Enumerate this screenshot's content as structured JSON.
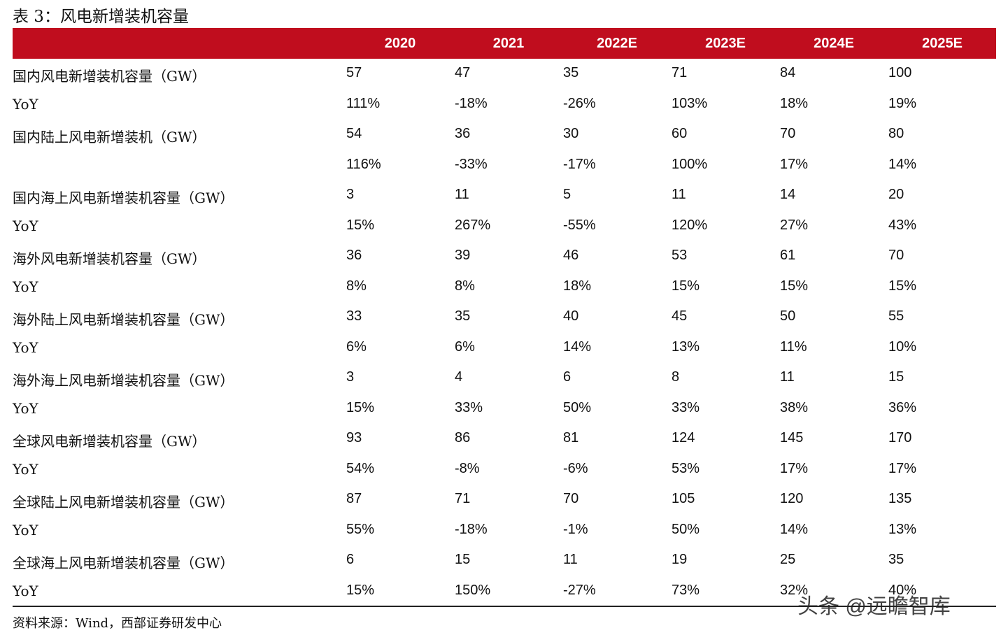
{
  "title": "表 3：风电新增装机容量",
  "table": {
    "header": [
      "2020",
      "2021",
      "2022E",
      "2023E",
      "2024E",
      "2025E"
    ],
    "rows": [
      [
        "国内风电新增装机容量（GW）",
        "57",
        "47",
        "35",
        "71",
        "84",
        "100"
      ],
      [
        "YoY",
        "111%",
        "-18%",
        "-26%",
        "103%",
        "18%",
        "19%"
      ],
      [
        "国内陆上风电新增装机（GW）",
        "54",
        "36",
        "30",
        "60",
        "70",
        "80"
      ],
      [
        null,
        "116%",
        "-33%",
        "-17%",
        "100%",
        "17%",
        "14%"
      ],
      [
        "国内海上风电新增装机容量（GW）",
        "3",
        "11",
        "5",
        "11",
        "14",
        "20"
      ],
      [
        "YoY",
        "15%",
        "267%",
        "-55%",
        "120%",
        "27%",
        "43%"
      ],
      [
        "海外风电新增装机容量（GW）",
        "36",
        "39",
        "46",
        "53",
        "61",
        "70"
      ],
      [
        "YoY",
        "8%",
        "8%",
        "18%",
        "15%",
        "15%",
        "15%"
      ],
      [
        "海外陆上风电新增装机容量（GW）",
        "33",
        "35",
        "40",
        "45",
        "50",
        "55"
      ],
      [
        "YoY",
        "6%",
        "6%",
        "14%",
        "13%",
        "11%",
        "10%"
      ],
      [
        "海外海上风电新增装机容量（GW）",
        "3",
        "4",
        "6",
        "8",
        "11",
        "15"
      ],
      [
        "YoY",
        "15%",
        "33%",
        "50%",
        "33%",
        "38%",
        "36%"
      ],
      [
        "全球风电新增装机容量（GW）",
        "93",
        "86",
        "81",
        "124",
        "145",
        "170"
      ],
      [
        "YoY",
        "54%",
        "-8%",
        "-6%",
        "53%",
        "17%",
        "17%"
      ],
      [
        "全球陆上风电新增装机容量（GW）",
        "87",
        "71",
        "70",
        "105",
        "120",
        "135"
      ],
      [
        "YoY",
        "55%",
        "-18%",
        "-1%",
        "50%",
        "14%",
        "13%"
      ],
      [
        "全球海上风电新增装机容量（GW）",
        "6",
        "15",
        "11",
        "19",
        "25",
        "35"
      ],
      [
        "YoY",
        "15%",
        "150%",
        "-27%",
        "73%",
        "32%",
        "40%"
      ]
    ]
  },
  "source": "资料来源：Wind，西部证券研发中心",
  "watermark": "头条 @远瞻智库"
}
